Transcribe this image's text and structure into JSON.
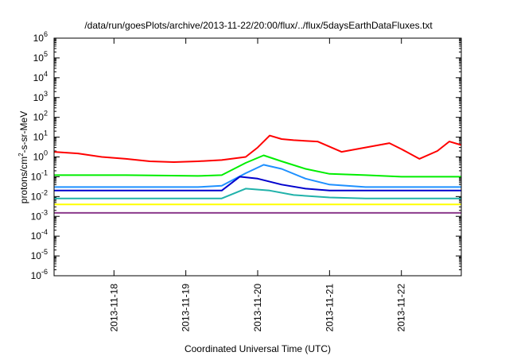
{
  "chart_data": {
    "type": "line",
    "title": "/data/run/goesPlots/archive/2013-11-22/20:00/flux/../flux/5daysEarthDataFluxes.txt",
    "xlabel": "Coordinated Universal Time (UTC)",
    "ylabel": {
      "pre": "protons/cm",
      "sup": "2",
      "post": "-s-sr-MeV"
    },
    "yscale": "log",
    "ylim": [
      1e-06,
      1000000.0
    ],
    "yticks": [
      {
        "value": 1e-06,
        "base": "10",
        "exp": "-6"
      },
      {
        "value": 1e-05,
        "base": "10",
        "exp": "-5"
      },
      {
        "value": 0.0001,
        "base": "10",
        "exp": "-4"
      },
      {
        "value": 0.001,
        "base": "10",
        "exp": "-3"
      },
      {
        "value": 0.01,
        "base": "10",
        "exp": "-2"
      },
      {
        "value": 0.1,
        "base": "10",
        "exp": "-1"
      },
      {
        "value": 1,
        "base": "10",
        "exp": "0"
      },
      {
        "value": 10.0,
        "base": "10",
        "exp": "1"
      },
      {
        "value": 100.0,
        "base": "10",
        "exp": "2"
      },
      {
        "value": 1000.0,
        "base": "10",
        "exp": "3"
      },
      {
        "value": 10000.0,
        "base": "10",
        "exp": "4"
      },
      {
        "value": 100000.0,
        "base": "10",
        "exp": "5"
      },
      {
        "value": 1000000.0,
        "base": "10",
        "exp": "6"
      }
    ],
    "xlim": [
      "2013-11-17 04:00",
      "2013-11-22 20:00"
    ],
    "xticks": [
      "2013-11-18",
      "2013-11-19",
      "2013-11-20",
      "2013-11-21",
      "2013-11-22"
    ],
    "grid": false,
    "series": [
      {
        "color": "#ff0000",
        "x": [
          "2013-11-17 04:00",
          "2013-11-17 12:00",
          "2013-11-17 20:00",
          "2013-11-18 04:00",
          "2013-11-18 12:00",
          "2013-11-18 20:00",
          "2013-11-19 04:00",
          "2013-11-19 12:00",
          "2013-11-19 20:00",
          "2013-11-20 00:00",
          "2013-11-20 04:00",
          "2013-11-20 08:00",
          "2013-11-20 12:00",
          "2013-11-20 20:00",
          "2013-11-21 04:00",
          "2013-11-21 12:00",
          "2013-11-21 20:00",
          "2013-11-22 00:00",
          "2013-11-22 06:00",
          "2013-11-22 12:00",
          "2013-11-22 16:00",
          "2013-11-22 20:00"
        ],
        "y": [
          1.8,
          1.5,
          1.0,
          0.8,
          0.6,
          0.55,
          0.6,
          0.7,
          1.0,
          3.0,
          12,
          8.0,
          7.0,
          6.0,
          1.8,
          3.0,
          5.0,
          2.5,
          0.8,
          2.0,
          6.0,
          4.0
        ]
      },
      {
        "color": "#00ee00",
        "x": [
          "2013-11-17 04:00",
          "2013-11-18 04:00",
          "2013-11-19 04:00",
          "2013-11-19 12:00",
          "2013-11-19 20:00",
          "2013-11-20 02:00",
          "2013-11-20 08:00",
          "2013-11-20 16:00",
          "2013-11-21 00:00",
          "2013-11-21 12:00",
          "2013-11-22 00:00",
          "2013-11-22 20:00"
        ],
        "y": [
          0.12,
          0.12,
          0.11,
          0.12,
          0.5,
          1.2,
          0.6,
          0.25,
          0.14,
          0.12,
          0.1,
          0.1
        ]
      },
      {
        "color": "#1e90ff",
        "x": [
          "2013-11-17 04:00",
          "2013-11-18 04:00",
          "2013-11-19 04:00",
          "2013-11-19 12:00",
          "2013-11-19 20:00",
          "2013-11-20 02:00",
          "2013-11-20 08:00",
          "2013-11-20 16:00",
          "2013-11-21 00:00",
          "2013-11-21 12:00",
          "2013-11-22 00:00",
          "2013-11-22 20:00"
        ],
        "y": [
          0.03,
          0.03,
          0.03,
          0.035,
          0.15,
          0.4,
          0.25,
          0.08,
          0.04,
          0.03,
          0.03,
          0.03
        ]
      },
      {
        "color": "#0000cd",
        "x": [
          "2013-11-17 04:00",
          "2013-11-18 04:00",
          "2013-11-19 04:00",
          "2013-11-19 12:00",
          "2013-11-19 18:00",
          "2013-11-20 00:00",
          "2013-11-20 08:00",
          "2013-11-20 16:00",
          "2013-11-21 00:00",
          "2013-11-21 12:00",
          "2013-11-22 00:00",
          "2013-11-22 20:00"
        ],
        "y": [
          0.02,
          0.02,
          0.02,
          0.02,
          0.1,
          0.08,
          0.04,
          0.025,
          0.02,
          0.02,
          0.02,
          0.02
        ]
      },
      {
        "color": "#20b2aa",
        "x": [
          "2013-11-17 04:00",
          "2013-11-18 04:00",
          "2013-11-19 04:00",
          "2013-11-19 12:00",
          "2013-11-19 20:00",
          "2013-11-20 04:00",
          "2013-11-20 12:00",
          "2013-11-21 00:00",
          "2013-11-21 12:00",
          "2013-11-22 00:00",
          "2013-11-22 20:00"
        ],
        "y": [
          0.008,
          0.008,
          0.008,
          0.008,
          0.025,
          0.02,
          0.012,
          0.009,
          0.008,
          0.008,
          0.008
        ]
      },
      {
        "color": "#ffff00",
        "x": [
          "2013-11-17 04:00",
          "2013-11-18 04:00",
          "2013-11-19 04:00",
          "2013-11-20 04:00",
          "2013-11-21 04:00",
          "2013-11-22 04:00",
          "2013-11-22 20:00"
        ],
        "y": [
          0.004,
          0.004,
          0.004,
          0.004,
          0.004,
          0.004,
          0.004
        ]
      },
      {
        "color": "#8b3a8b",
        "x": [
          "2013-11-17 04:00",
          "2013-11-18 04:00",
          "2013-11-19 04:00",
          "2013-11-20 04:00",
          "2013-11-21 04:00",
          "2013-11-22 04:00",
          "2013-11-22 20:00"
        ],
        "y": [
          0.0015,
          0.0015,
          0.0015,
          0.0015,
          0.0015,
          0.0015,
          0.0015
        ]
      }
    ]
  }
}
